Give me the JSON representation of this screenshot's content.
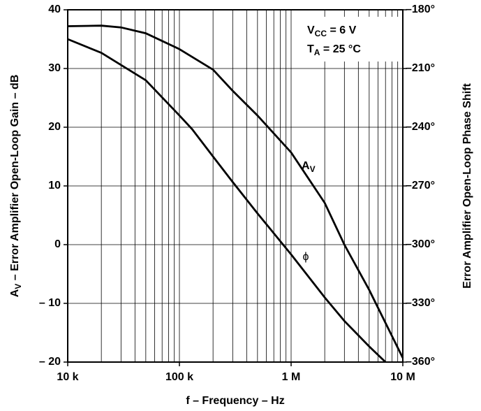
{
  "chart_data": {
    "type": "line",
    "xlog": true,
    "grid": true,
    "xlabel": "f –  Frequency – Hz",
    "ylabel": [
      "A",
      "V",
      " – Error Amplifier Open-Loop Gain – dB"
    ],
    "y2label": "Error Amplifier Open-Loop Phase Shift",
    "xlim": [
      10000,
      10000000
    ],
    "xticks": [
      {
        "value": 10000,
        "label": "10 k"
      },
      {
        "value": 100000,
        "label": "100 k"
      },
      {
        "value": 1000000,
        "label": "1 M"
      },
      {
        "value": 10000000,
        "label": "10 M"
      }
    ],
    "xminorticks": [
      20000,
      30000,
      40000,
      50000,
      60000,
      70000,
      80000,
      90000,
      200000,
      300000,
      400000,
      500000,
      600000,
      700000,
      800000,
      900000,
      2000000,
      3000000,
      4000000,
      5000000,
      6000000,
      7000000,
      8000000,
      9000000
    ],
    "ylim": [
      -20,
      40
    ],
    "yticks": [
      {
        "value": -20,
        "label": "– 20"
      },
      {
        "value": -10,
        "label": "– 10"
      },
      0,
      10,
      20,
      30,
      40
    ],
    "y2lim": [
      -360,
      -180
    ],
    "y2ticks": [
      {
        "value": -360,
        "label": "–360°"
      },
      {
        "value": -330,
        "label": "–330°"
      },
      {
        "value": -300,
        "label": "–300°"
      },
      {
        "value": -270,
        "label": "–270°"
      },
      {
        "value": -240,
        "label": "–240°"
      },
      {
        "value": -210,
        "label": "–210°"
      },
      {
        "value": -180,
        "label": "–180°"
      }
    ],
    "annotations": [
      [
        "V",
        "CC",
        " = 6 V"
      ],
      [
        "T",
        "A",
        " = 25 °C"
      ]
    ],
    "series": [
      {
        "name": "A",
        "name_sub": "V",
        "color": "#000000",
        "x": [
          10000,
          20000,
          30000,
          50000,
          100000,
          200000,
          300000,
          500000,
          1000000,
          2000000,
          3000000,
          5000000,
          10000000
        ],
        "values": [
          37.2,
          37.3,
          37,
          36,
          33.3,
          29.8,
          26.2,
          22,
          15.7,
          7.1,
          0,
          -7.7,
          -19.3
        ]
      },
      {
        "name": "ϕ",
        "color": "#000000",
        "axis": "y2",
        "x": [
          10000,
          20000,
          50000,
          100000,
          130000,
          200000,
          300000,
          500000,
          1000000,
          2000000,
          3000000,
          5000000,
          7000000
        ],
        "values": [
          -195,
          -202,
          -216,
          -234,
          -241,
          -255,
          -268,
          -284,
          -305,
          -327,
          -339,
          -352,
          -360
        ]
      }
    ]
  }
}
